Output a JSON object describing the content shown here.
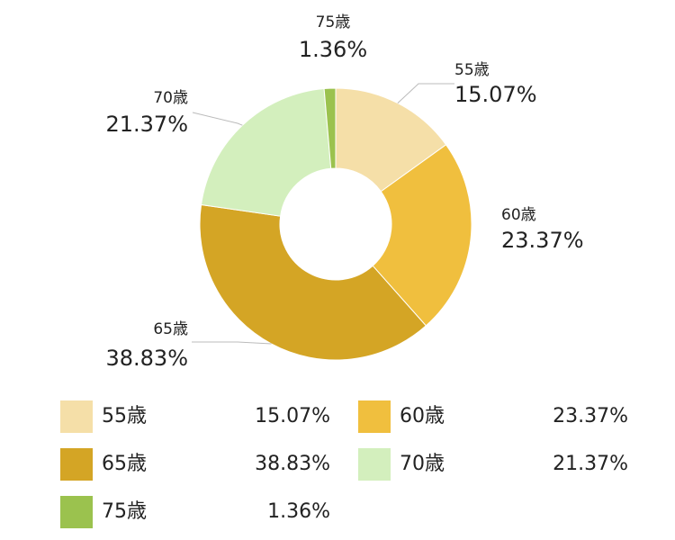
{
  "chart_data": {
    "type": "pie",
    "donut": true,
    "legend_position": "bottom",
    "slices": [
      {
        "label": "55歳",
        "value": 15.07,
        "display": "15.07%",
        "color": "#f5dfa8"
      },
      {
        "label": "60歳",
        "value": 23.37,
        "display": "23.37%",
        "color": "#f0bf3e"
      },
      {
        "label": "65歳",
        "value": 38.83,
        "display": "38.83%",
        "color": "#d4a525"
      },
      {
        "label": "70歳",
        "value": 21.37,
        "display": "21.37%",
        "color": "#d3efbd"
      },
      {
        "label": "75歳",
        "value": 1.36,
        "display": "1.36%",
        "color": "#9bc24e"
      }
    ]
  }
}
